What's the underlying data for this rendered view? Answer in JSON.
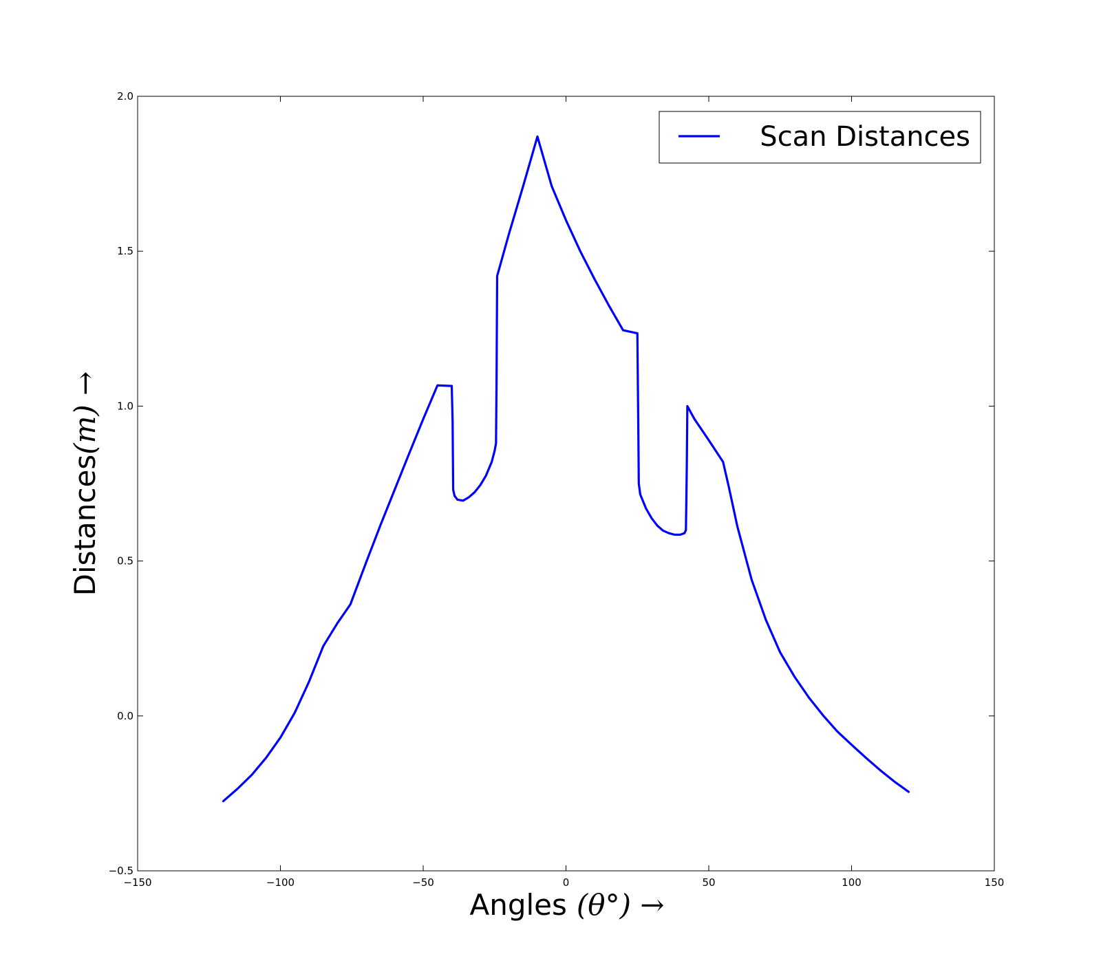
{
  "chart_data": {
    "type": "line",
    "xlabel": "Angles",
    "xlabel_math": "(θ°) →",
    "ylabel": "Distances",
    "ylabel_math": "(m) →",
    "xlim": [
      -150,
      150
    ],
    "ylim": [
      -0.5,
      2.0
    ],
    "xticks": [
      -150,
      -100,
      -50,
      0,
      50,
      100,
      150
    ],
    "yticks": [
      -0.5,
      0.0,
      0.5,
      1.0,
      1.5,
      2.0
    ],
    "xtick_labels": [
      "−150",
      "−100",
      "−50",
      "0",
      "50",
      "100",
      "150"
    ],
    "ytick_labels": [
      "−0.5",
      "0.0",
      "0.5",
      "1.0",
      "1.5",
      "2.0"
    ],
    "grid": false,
    "legend_position": "top-right",
    "series": [
      {
        "name": "Scan Distances",
        "color": "#0000ff",
        "x": [
          -120,
          -115,
          -110,
          -105,
          -100,
          -95,
          -90,
          -85,
          -80,
          -77,
          -75.5,
          -70,
          -65,
          -60,
          -55,
          -50,
          -45,
          -40,
          -39.7,
          -39.5,
          -39,
          -38,
          -36,
          -34,
          -32,
          -30,
          -28,
          -26,
          -25,
          -24.5,
          -24.3,
          -24.1,
          -20,
          -15,
          -10,
          -5,
          0,
          5,
          10,
          15,
          20,
          25,
          25.3,
          25.5,
          26,
          28,
          30,
          32,
          34,
          36,
          38,
          40,
          41.5,
          42,
          42.3,
          42.5,
          45,
          50,
          55,
          57,
          60,
          65,
          70,
          75,
          80,
          85,
          90,
          95,
          100,
          105,
          110,
          115,
          120
        ],
        "values": [
          -0.275,
          -0.235,
          -0.19,
          -0.135,
          -0.07,
          0.01,
          0.11,
          0.225,
          0.3,
          0.34,
          0.36,
          0.495,
          0.615,
          0.73,
          0.845,
          0.958,
          1.067,
          1.065,
          0.95,
          0.73,
          0.71,
          0.698,
          0.695,
          0.706,
          0.722,
          0.745,
          0.776,
          0.82,
          0.855,
          0.88,
          1.1,
          1.42,
          1.555,
          1.71,
          1.87,
          1.71,
          1.6,
          1.5,
          1.41,
          1.325,
          1.245,
          1.235,
          0.95,
          0.75,
          0.715,
          0.67,
          0.638,
          0.614,
          0.598,
          0.59,
          0.585,
          0.585,
          0.59,
          0.6,
          0.8,
          1.0,
          0.958,
          0.89,
          0.82,
          0.74,
          0.612,
          0.44,
          0.31,
          0.205,
          0.127,
          0.06,
          0.002,
          -0.05,
          -0.093,
          -0.135,
          -0.175,
          -0.212,
          -0.245
        ]
      }
    ]
  }
}
